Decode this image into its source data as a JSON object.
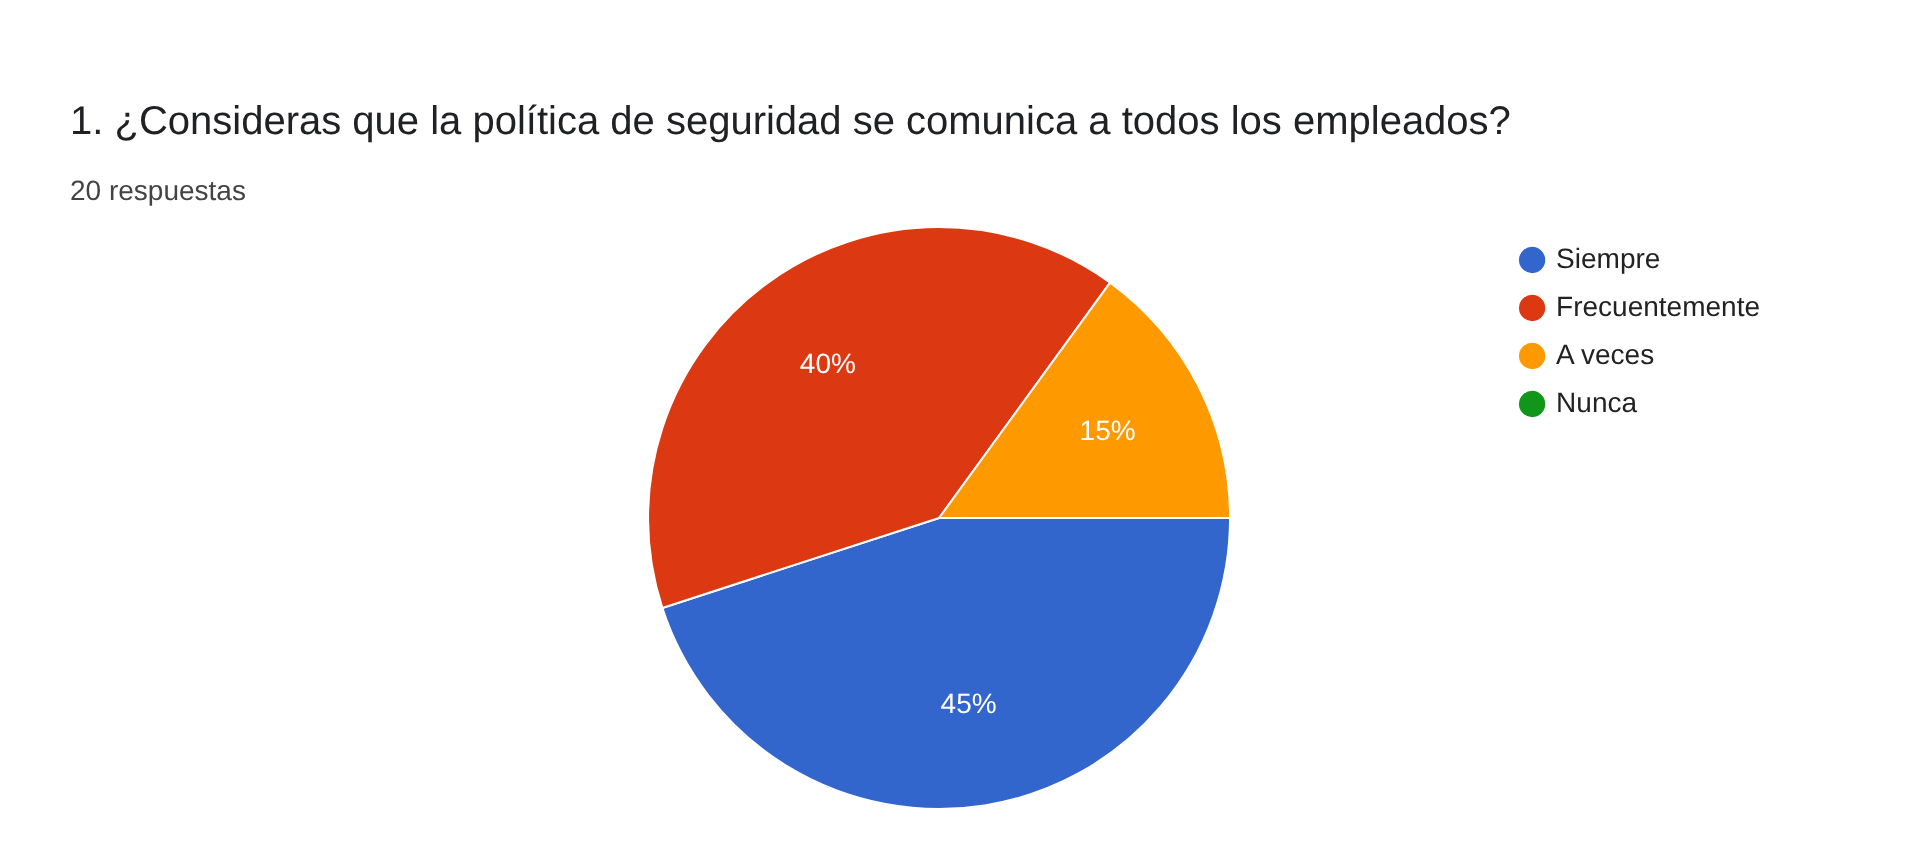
{
  "chart_data": {
    "type": "pie",
    "title": "1. ¿Consideras que la política de seguridad se comunica a todos los empleados?",
    "subtitle": "20 respuestas",
    "categories": [
      "Siempre",
      "Frecuentemente",
      "A veces",
      "Nunca"
    ],
    "values": [
      45,
      40,
      15,
      0
    ],
    "colors": [
      "#3366cc",
      "#dc3912",
      "#ff9900",
      "#109618"
    ],
    "value_labels": [
      "45%",
      "40%",
      "15%",
      null
    ],
    "legend": "right"
  }
}
